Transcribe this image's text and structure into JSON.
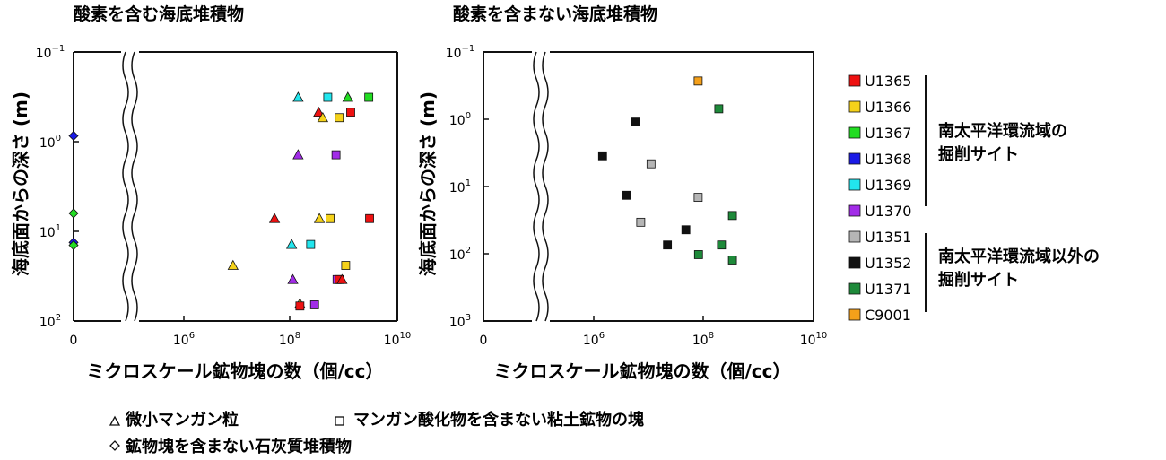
{
  "chart_data": [
    {
      "type": "scatter",
      "title": "酸素を含む海底堆積物",
      "ylabel": "海底面からの深さ (m)",
      "xlabel": "ミクロスケール鉱物塊の数（個/cc）",
      "x_scale": "log, with axis break between 0 and 10^5",
      "y_scale": "log (inverted)",
      "xlim": [
        "0",
        "10^10"
      ],
      "ylim": [
        0.1,
        100
      ],
      "x_ticks": [
        {
          "base": "0",
          "exp": ""
        },
        {
          "base": "10",
          "exp": "6"
        },
        {
          "base": "10",
          "exp": "8"
        },
        {
          "base": "10",
          "exp": "10"
        }
      ],
      "y_ticks": [
        {
          "base": "10",
          "exp": "−1"
        },
        {
          "base": "10",
          "exp": "0"
        },
        {
          "base": "10",
          "exp": "1"
        },
        {
          "base": "10",
          "exp": "2"
        }
      ],
      "points": [
        {
          "site": "U1369",
          "marker": "triangle",
          "x": 120000000.0,
          "y": 0.32
        },
        {
          "site": "U1369",
          "marker": "square",
          "x": 450000000.0,
          "y": 0.32
        },
        {
          "site": "U1367",
          "marker": "triangle",
          "x": 1100000000.0,
          "y": 0.32
        },
        {
          "site": "U1367",
          "marker": "square",
          "x": 2800000000.0,
          "y": 0.32
        },
        {
          "site": "U1365",
          "marker": "triangle",
          "x": 300000000.0,
          "y": 0.47
        },
        {
          "site": "U1365",
          "marker": "square",
          "x": 1250000000.0,
          "y": 0.47
        },
        {
          "site": "U1366",
          "marker": "triangle",
          "x": 360000000.0,
          "y": 0.54
        },
        {
          "site": "U1366",
          "marker": "square",
          "x": 750000000.0,
          "y": 0.54
        },
        {
          "site": "U1370",
          "marker": "triangle",
          "x": 120000000.0,
          "y": 1.4
        },
        {
          "site": "U1370",
          "marker": "square",
          "x": 650000000.0,
          "y": 1.4
        },
        {
          "site": "U1365",
          "marker": "triangle",
          "x": 42000000.0,
          "y": 7.2
        },
        {
          "site": "U1366",
          "marker": "triangle",
          "x": 310000000.0,
          "y": 7.2
        },
        {
          "site": "U1366",
          "marker": "square",
          "x": 500000000.0,
          "y": 7.2
        },
        {
          "site": "U1365",
          "marker": "square",
          "x": 2900000000.0,
          "y": 7.2
        },
        {
          "site": "U1369",
          "marker": "triangle",
          "x": 90000000.0,
          "y": 14.0
        },
        {
          "site": "U1369",
          "marker": "square",
          "x": 210000000.0,
          "y": 14.0
        },
        {
          "site": "U1366",
          "marker": "triangle",
          "x": 6600000.0,
          "y": 24.0
        },
        {
          "site": "U1366",
          "marker": "square",
          "x": 1000000000.0,
          "y": 24.0
        },
        {
          "site": "U1370",
          "marker": "triangle",
          "x": 95000000.0,
          "y": 34.5
        },
        {
          "site": "U1370",
          "marker": "square",
          "x": 680000000.0,
          "y": 34.5
        },
        {
          "site": "U1365",
          "marker": "square",
          "x": 750000000.0,
          "y": 34.5
        },
        {
          "site": "U1365",
          "marker": "triangle",
          "x": 850000000.0,
          "y": 34.5
        },
        {
          "site": "U1366",
          "marker": "triangle",
          "x": 130000000.0,
          "y": 64
        },
        {
          "site": "U1365",
          "marker": "square",
          "x": 130000000.0,
          "y": 68
        },
        {
          "site": "U1370",
          "marker": "square",
          "x": 250000000.0,
          "y": 66
        },
        {
          "site": "U1368",
          "marker": "diamond",
          "x": 0,
          "y": 0.86
        },
        {
          "site": "U1367",
          "marker": "diamond",
          "x": 0,
          "y": 6.3
        },
        {
          "site": "U1368",
          "marker": "diamond",
          "x": 0,
          "y": 13.3
        },
        {
          "site": "U1367",
          "marker": "diamond",
          "x": 0,
          "y": 14.3
        }
      ]
    },
    {
      "type": "scatter",
      "title": "酸素を含まない海底堆積物",
      "ylabel": "海底面からの深さ (m)",
      "xlabel": "ミクロスケール鉱物塊の数（個/cc）",
      "x_scale": "log, with axis break between 0 and 10^5",
      "y_scale": "log (inverted)",
      "xlim": [
        "0",
        "10^10"
      ],
      "ylim": [
        0.1,
        1000
      ],
      "x_ticks": [
        {
          "base": "0",
          "exp": ""
        },
        {
          "base": "10",
          "exp": "6"
        },
        {
          "base": "10",
          "exp": "8"
        },
        {
          "base": "10",
          "exp": "10"
        }
      ],
      "y_ticks": [
        {
          "base": "10",
          "exp": "−1"
        },
        {
          "base": "10",
          "exp": "0"
        },
        {
          "base": "10",
          "exp": "1"
        },
        {
          "base": "10",
          "exp": "2"
        },
        {
          "base": "10",
          "exp": "3"
        }
      ],
      "points": [
        {
          "site": "C9001",
          "marker": "square",
          "x": 65000000.0,
          "y": 0.27
        },
        {
          "site": "U1371",
          "marker": "square",
          "x": 160000000.0,
          "y": 0.7
        },
        {
          "site": "U1352",
          "marker": "square",
          "x": 4200000.0,
          "y": 1.1
        },
        {
          "site": "U1352",
          "marker": "square",
          "x": 1000000.0,
          "y": 3.5
        },
        {
          "site": "U1351",
          "marker": "square",
          "x": 8300000.0,
          "y": 4.6
        },
        {
          "site": "U1352",
          "marker": "square",
          "x": 2800000.0,
          "y": 13.5
        },
        {
          "site": "U1351",
          "marker": "square",
          "x": 65000000.0,
          "y": 14.5
        },
        {
          "site": "U1371",
          "marker": "square",
          "x": 290000000.0,
          "y": 27
        },
        {
          "site": "U1351",
          "marker": "square",
          "x": 5300000.0,
          "y": 34
        },
        {
          "site": "U1352",
          "marker": "square",
          "x": 38000000.0,
          "y": 44
        },
        {
          "site": "U1352",
          "marker": "square",
          "x": 17000000.0,
          "y": 74
        },
        {
          "site": "U1371",
          "marker": "square",
          "x": 180000000.0,
          "y": 74
        },
        {
          "site": "U1371",
          "marker": "square",
          "x": 66000000.0,
          "y": 103
        },
        {
          "site": "U1371",
          "marker": "square",
          "x": 290000000.0,
          "y": 124
        }
      ]
    }
  ],
  "legend": {
    "items": [
      {
        "label": "U1365",
        "color": "#ee1111"
      },
      {
        "label": "U1366",
        "color": "#f5d21a"
      },
      {
        "label": "U1367",
        "color": "#22dd22"
      },
      {
        "label": "U1368",
        "color": "#1a1ae6"
      },
      {
        "label": "U1369",
        "color": "#22e6ee"
      },
      {
        "label": "U1370",
        "color": "#a22ce8"
      },
      {
        "label": "U1351",
        "color": "#b5b5b5"
      },
      {
        "label": "U1352",
        "color": "#111111"
      },
      {
        "label": "U1371",
        "color": "#1e8a3a"
      },
      {
        "label": "C9001",
        "color": "#f5a01a"
      }
    ],
    "group1_line1": "南太平洋環流域の",
    "group1_line2": "掘削サイト",
    "group2_line1": "南太平洋環流域以外の",
    "group2_line2": "掘削サイト"
  },
  "footer": {
    "triangle_label": "微小マンガン粒",
    "square_label": "マンガン酸化物を含まない粘土鉱物の塊",
    "diamond_label": "鉱物塊を含まない石灰質堆積物"
  }
}
